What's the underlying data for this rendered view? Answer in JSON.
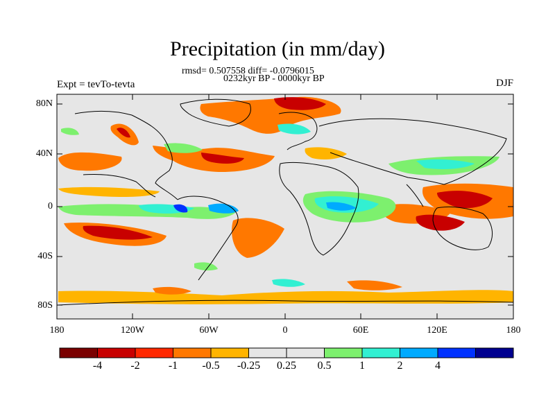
{
  "title": "Precipitation (in mm/day)",
  "stats": "rmsd= 0.507558 diff= -0.0796015",
  "period": "0232kyr BP - 0000kyr BP",
  "experiment": "Expt = tevTo-tevta",
  "season": "DJF",
  "y_ticks": [
    "80N",
    "40N",
    "0",
    "40S",
    "80S"
  ],
  "x_ticks": [
    "180",
    "120W",
    "60W",
    "0",
    "60E",
    "120E",
    "180"
  ],
  "colorbar": {
    "colors": [
      "#7a0000",
      "#c80000",
      "#ff2800",
      "#ff7800",
      "#ffb400",
      "#e6e6e6",
      "#e6e6e6",
      "#7df06e",
      "#32f0d2",
      "#00aaff",
      "#0032ff",
      "#000090"
    ],
    "labels": [
      "-4",
      "-2",
      "-1",
      "-0.5",
      "-0.25",
      "0.25",
      "0.5",
      "1",
      "2",
      "4"
    ]
  },
  "colors": {
    "background": "#e6e6e6",
    "dry_strong": "#c80000",
    "dry": "#ff7800",
    "dry_weak": "#ffb400",
    "wet_weak": "#7df06e",
    "wet": "#32f0d2",
    "wet_strong": "#00aaff",
    "wet_vstrong": "#0032ff",
    "coast": "#000000"
  }
}
